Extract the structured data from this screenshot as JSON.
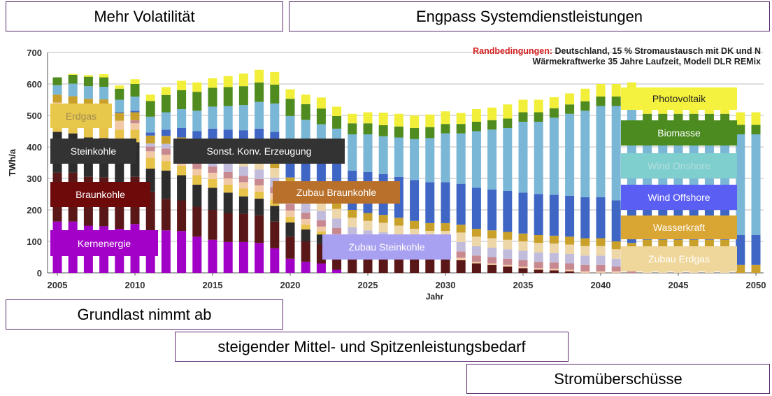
{
  "headers": {
    "top_left": "Mehr Volatilität",
    "top_right": "Engpass Systemdienstleistungen",
    "bottom_1": "Grundlast nimmt ab",
    "bottom_2": "steigender Mittel- und Spitzenleistungsbedarf",
    "bottom_3": "Stromüberschüsse"
  },
  "conditions": {
    "label": "Randbedingungen:",
    "line1": "Deutschland, 15 % Stromaustausch mit DK und N",
    "line2": "Wärmekraftwerke 35 Jahre Laufzeit, Modell DLR REMix"
  },
  "overlay_labels": {
    "erdgas": "Erdgas",
    "steinkohle": "Steinkohle",
    "braunkohle": "Braunkohle",
    "kernenergie": "Kernenergie",
    "sonst": "Sonst. Konv. Erzeugung",
    "zubau_braunkohle": "Zubau Braunkohle",
    "zubau_steinkohle": "Zubau Steinkohle",
    "photovoltaik": "Photovoltaik",
    "biomasse": "Biomasse",
    "wind_onshore": "Wind Onshore",
    "wind_offshore": "Wind Offshore",
    "wasserkraft": "Wasserkraft",
    "zubau_erdgas": "Zubau Erdgas"
  },
  "colors": {
    "kernenergie": "#a100c6",
    "braunkohle": "#5a1717",
    "steinkohle": "#2d2d2d",
    "erdgas": "#e8c34a",
    "sonst": "#f2c9a6",
    "zubau_braunkohle": "#c7888f",
    "zubau_steinkohle": "#c2bcdc",
    "zubau_erdgas": "#edd7a8",
    "wasserkraft": "#c9a12a",
    "wind_offshore": "#3f66c4",
    "wind_onshore": "#7ab6d6",
    "biomasse": "#4f8b1e",
    "photovoltaik": "#f2ef3a",
    "label_erdgas": "#e8c84a",
    "label_steinkohle": "#333333",
    "label_braunkohle": "#6e0a0a",
    "label_kernenergie": "#a300c8",
    "label_sonst": "#333333",
    "label_zubau_braunkohle": "#b8702a",
    "label_zubau_steinkohle": "#a8a0f0",
    "label_photovoltaik": "#f4f23e",
    "label_biomasse": "#4b8b1f",
    "label_wind_onshore": "#7fcfcf",
    "label_wind_offshore": "#5a5ef2",
    "label_wasserkraft": "#d9a533",
    "label_zubau_erdgas": "#efd69a"
  },
  "chart_data": {
    "type": "bar",
    "stacked": true,
    "title": "",
    "xlabel": "Jahr",
    "ylabel": "TWh/a",
    "ylim": [
      0,
      700
    ],
    "yticks": [
      0,
      100,
      200,
      300,
      400,
      500,
      600,
      700
    ],
    "xticks": [
      2005,
      2010,
      2015,
      2020,
      2025,
      2030,
      2035,
      2040,
      2045,
      2050
    ],
    "grid": "horizontal",
    "categories": [
      2005,
      2006,
      2007,
      2008,
      2009,
      2010,
      2011,
      2012,
      2013,
      2014,
      2015,
      2016,
      2017,
      2018,
      2019,
      2020,
      2021,
      2022,
      2023,
      2024,
      2025,
      2026,
      2027,
      2028,
      2029,
      2030,
      2031,
      2032,
      2033,
      2034,
      2035,
      2036,
      2037,
      2038,
      2039,
      2040,
      2041,
      2042,
      2043,
      2044,
      2045,
      2046,
      2047,
      2048,
      2049,
      2050
    ],
    "series": [
      {
        "key": "kernenergie",
        "values": [
          163,
          163,
          150,
          148,
          140,
          155,
          110,
          135,
          133,
          115,
          105,
          98,
          98,
          95,
          78,
          45,
          35,
          30,
          10,
          0,
          0,
          0,
          0,
          0,
          0,
          0,
          0,
          0,
          0,
          0,
          0,
          0,
          0,
          0,
          0,
          0,
          0,
          0,
          0,
          0,
          0,
          0,
          0,
          0,
          0,
          0
        ]
      },
      {
        "key": "braunkohle",
        "values": [
          155,
          155,
          155,
          155,
          145,
          150,
          148,
          100,
          97,
          95,
          95,
          92,
          90,
          88,
          85,
          70,
          65,
          62,
          70,
          65,
          60,
          58,
          55,
          50,
          45,
          45,
          40,
          30,
          25,
          20,
          15,
          10,
          8,
          5,
          0,
          0,
          0,
          0,
          0,
          0,
          0,
          0,
          0,
          0,
          0,
          0
        ]
      },
      {
        "key": "steinkohle",
        "values": [
          130,
          125,
          125,
          125,
          110,
          110,
          73,
          90,
          80,
          70,
          70,
          65,
          55,
          53,
          50,
          45,
          38,
          30,
          20,
          15,
          10,
          8,
          5,
          0,
          0,
          0,
          0,
          0,
          0,
          0,
          0,
          0,
          0,
          0,
          0,
          0,
          0,
          0,
          0,
          0,
          0,
          0,
          0,
          0,
          0,
          0
        ]
      },
      {
        "key": "erdgas",
        "values": [
          65,
          65,
          70,
          70,
          60,
          40,
          35,
          30,
          30,
          30,
          28,
          25,
          25,
          22,
          20,
          18,
          15,
          10,
          8,
          5,
          5,
          3,
          0,
          0,
          0,
          0,
          0,
          0,
          0,
          0,
          0,
          0,
          0,
          0,
          0,
          0,
          0,
          0,
          0,
          0,
          0,
          0,
          0,
          0,
          0,
          0
        ]
      },
      {
        "key": "sonst",
        "values": [
          28,
          28,
          28,
          28,
          28,
          20,
          20,
          20,
          20,
          20,
          20,
          20,
          20,
          20,
          20,
          20,
          18,
          15,
          15,
          10,
          10,
          10,
          10,
          10,
          8,
          8,
          8,
          5,
          5,
          5,
          5,
          5,
          5,
          5,
          5,
          5,
          5,
          0,
          0,
          0,
          0,
          0,
          0,
          0,
          0,
          0
        ]
      },
      {
        "key": "zubau_braunkohle",
        "values": [
          0,
          0,
          0,
          0,
          0,
          10,
          15,
          20,
          20,
          20,
          20,
          20,
          20,
          20,
          20,
          20,
          20,
          20,
          20,
          20,
          20,
          20,
          20,
          20,
          20,
          20,
          20,
          20,
          20,
          20,
          20,
          20,
          20,
          20,
          20,
          20,
          15,
          10,
          0,
          0,
          0,
          0,
          0,
          0,
          0,
          0
        ]
      },
      {
        "key": "zubau_steinkohle",
        "values": [
          0,
          0,
          0,
          0,
          0,
          0,
          10,
          15,
          20,
          25,
          30,
          30,
          30,
          30,
          30,
          30,
          30,
          30,
          30,
          30,
          30,
          30,
          30,
          30,
          30,
          30,
          30,
          30,
          30,
          30,
          30,
          30,
          30,
          30,
          30,
          30,
          25,
          20,
          0,
          0,
          0,
          0,
          0,
          0,
          0,
          0
        ]
      },
      {
        "key": "zubau_erdgas",
        "values": [
          0,
          0,
          0,
          0,
          0,
          0,
          0,
          0,
          5,
          10,
          15,
          20,
          20,
          25,
          30,
          30,
          30,
          30,
          30,
          30,
          30,
          30,
          30,
          30,
          30,
          30,
          30,
          30,
          30,
          30,
          30,
          30,
          30,
          30,
          30,
          30,
          30,
          40,
          80,
          80,
          80,
          80,
          80,
          80,
          0,
          0
        ]
      },
      {
        "key": "wasserkraft",
        "values": [
          25,
          25,
          25,
          25,
          25,
          25,
          25,
          25,
          25,
          25,
          25,
          25,
          25,
          25,
          25,
          25,
          25,
          25,
          25,
          25,
          25,
          25,
          25,
          25,
          25,
          25,
          25,
          25,
          25,
          25,
          25,
          25,
          25,
          25,
          25,
          25,
          25,
          25,
          25,
          25,
          25,
          25,
          25,
          25,
          25,
          25
        ]
      },
      {
        "key": "wind_offshore",
        "values": [
          0,
          0,
          0,
          0,
          2,
          5,
          10,
          20,
          30,
          40,
          50,
          60,
          70,
          80,
          90,
          100,
          110,
          115,
          120,
          125,
          130,
          130,
          130,
          130,
          130,
          130,
          130,
          130,
          130,
          130,
          130,
          130,
          130,
          130,
          130,
          130,
          130,
          130,
          130,
          130,
          130,
          130,
          130,
          130,
          95,
          95
        ]
      },
      {
        "key": "wind_onshore",
        "values": [
          30,
          40,
          40,
          40,
          40,
          45,
          50,
          55,
          60,
          65,
          70,
          75,
          80,
          85,
          90,
          95,
          100,
          105,
          110,
          115,
          120,
          120,
          125,
          130,
          140,
          155,
          160,
          180,
          190,
          200,
          225,
          230,
          245,
          260,
          275,
          290,
          300,
          310,
          240,
          240,
          240,
          240,
          240,
          240,
          320,
          320
        ]
      },
      {
        "key": "biomasse",
        "values": [
          25,
          28,
          30,
          30,
          35,
          40,
          50,
          55,
          60,
          60,
          60,
          60,
          60,
          62,
          60,
          55,
          50,
          50,
          40,
          35,
          35,
          35,
          35,
          35,
          35,
          30,
          30,
          30,
          30,
          30,
          30,
          30,
          30,
          30,
          30,
          30,
          30,
          30,
          30,
          30,
          30,
          30,
          30,
          30,
          30,
          30
        ]
      },
      {
        "key": "photovoltaik",
        "values": [
          0,
          3,
          5,
          10,
          10,
          15,
          20,
          25,
          30,
          30,
          30,
          35,
          40,
          40,
          40,
          30,
          30,
          35,
          30,
          30,
          35,
          40,
          40,
          40,
          40,
          40,
          35,
          40,
          40,
          45,
          40,
          40,
          35,
          35,
          40,
          40,
          40,
          40,
          40,
          40,
          40,
          40,
          40,
          40,
          40,
          40
        ]
      }
    ]
  }
}
